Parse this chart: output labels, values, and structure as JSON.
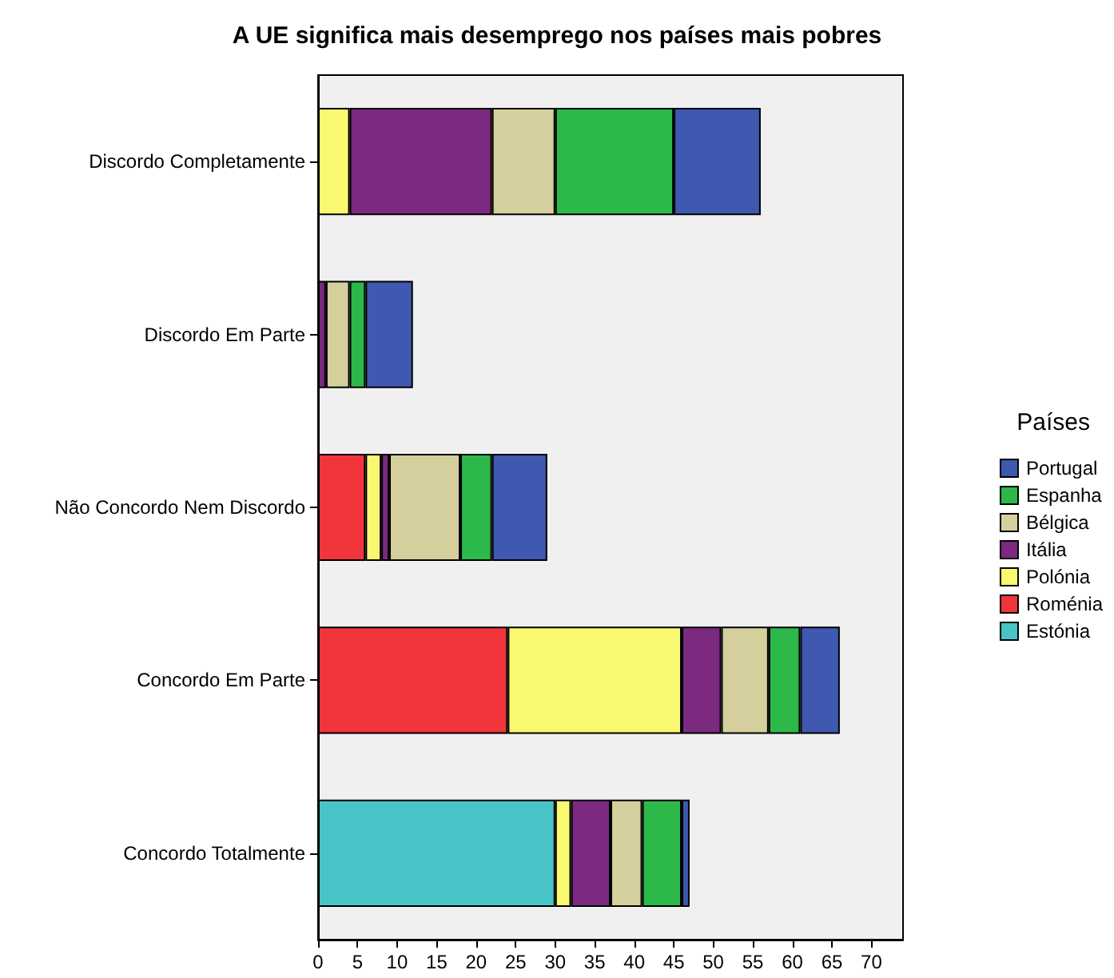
{
  "chart_data": {
    "type": "bar",
    "orientation": "horizontal",
    "stacked": true,
    "title": "A UE significa mais desemprego nos países mais pobres",
    "legend_title": "Países",
    "legend": "right",
    "grid": false,
    "categories": [
      "Discordo Completamente",
      "Discordo Em Parte",
      "Não Concordo Nem Discordo",
      "Concordo Em Parte",
      "Concordo Totalmente"
    ],
    "xlim": [
      0,
      74
    ],
    "xticks": [
      0,
      5,
      10,
      15,
      20,
      25,
      30,
      35,
      40,
      45,
      50,
      55,
      60,
      65,
      70
    ],
    "series": [
      {
        "name": "Estónia",
        "color": "#48c3c8",
        "values": [
          null,
          null,
          null,
          null,
          30
        ]
      },
      {
        "name": "Roménia",
        "color": "#f0353c",
        "values": [
          null,
          null,
          6,
          24,
          null
        ]
      },
      {
        "name": "Polónia",
        "color": "#f9f871",
        "values": [
          4,
          null,
          2,
          22,
          2
        ]
      },
      {
        "name": "Itália",
        "color": "#7b2a7f",
        "values": [
          18,
          1,
          1,
          5,
          5
        ]
      },
      {
        "name": "Bélgica",
        "color": "#d4cf9c",
        "values": [
          8,
          3,
          9,
          6,
          4
        ]
      },
      {
        "name": "Espanha",
        "color": "#2db84a",
        "values": [
          15,
          2,
          4,
          4,
          5
        ]
      },
      {
        "name": "Portugal",
        "color": "#3f58b0",
        "values": [
          11,
          6,
          7,
          5,
          1
        ]
      }
    ]
  }
}
